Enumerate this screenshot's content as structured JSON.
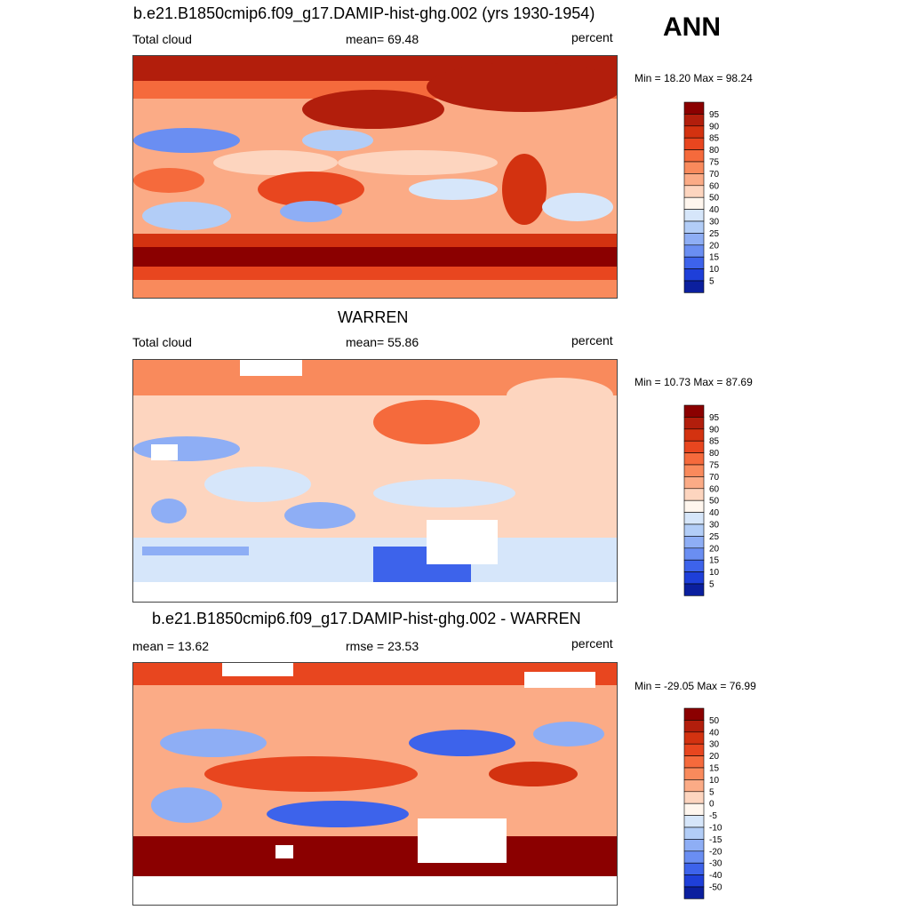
{
  "season": "ANN",
  "panels": [
    {
      "id": "model",
      "title": "b.e21.B1850cmip6.f09_g17.DAMIP-hist-ghg.002 (yrs 1930-1954)",
      "left_label": "Total cloud",
      "stat1": "mean=  69.48",
      "stat2": "",
      "units": "percent",
      "minmax": "Min =  18.20 Max =  98.24",
      "colorbar_levels": [
        "95",
        "90",
        "85",
        "80",
        "75",
        "70",
        "60",
        "50",
        "40",
        "30",
        "25",
        "20",
        "15",
        "10",
        "5"
      ],
      "colorbar_colors": [
        "#8b0000",
        "#b21e0c",
        "#d33210",
        "#e8461f",
        "#f56a3c",
        "#f98a5c",
        "#fbab86",
        "#fdd5bf",
        "#fff6ee",
        "#d6e6fa",
        "#b2cdf7",
        "#8eaef5",
        "#6a8ef2",
        "#3d63eb",
        "#1e3fd9",
        "#0b1f9e"
      ]
    },
    {
      "id": "obs",
      "title": "WARREN",
      "left_label": "Total cloud",
      "stat1": "mean=  55.86",
      "stat2": "",
      "units": "percent",
      "minmax": "Min =  10.73 Max =  87.69",
      "colorbar_levels": [
        "95",
        "90",
        "85",
        "80",
        "75",
        "70",
        "60",
        "50",
        "40",
        "30",
        "25",
        "20",
        "15",
        "10",
        "5"
      ],
      "colorbar_colors": [
        "#8b0000",
        "#b21e0c",
        "#d33210",
        "#e8461f",
        "#f56a3c",
        "#f98a5c",
        "#fbab86",
        "#fdd5bf",
        "#fff6ee",
        "#d6e6fa",
        "#b2cdf7",
        "#8eaef5",
        "#6a8ef2",
        "#3d63eb",
        "#1e3fd9",
        "#0b1f9e"
      ]
    },
    {
      "id": "diff",
      "title": "b.e21.B1850cmip6.f09_g17.DAMIP-hist-ghg.002 - WARREN",
      "left_label": "mean =  13.62",
      "stat1": "",
      "stat2": "rmse =  23.53",
      "units": "percent",
      "minmax": "Min = -29.05 Max =  76.99",
      "colorbar_levels": [
        "50",
        "40",
        "30",
        "20",
        "15",
        "10",
        "5",
        "0",
        "-5",
        "-10",
        "-15",
        "-20",
        "-30",
        "-40",
        "-50"
      ],
      "colorbar_colors": [
        "#8b0000",
        "#b21e0c",
        "#d33210",
        "#e8461f",
        "#f56a3c",
        "#f98a5c",
        "#fbab86",
        "#fdd5bf",
        "#fff6ee",
        "#d6e6fa",
        "#b2cdf7",
        "#8eaef5",
        "#6a8ef2",
        "#3d63eb",
        "#1e3fd9",
        "#0b1f9e"
      ]
    }
  ]
}
